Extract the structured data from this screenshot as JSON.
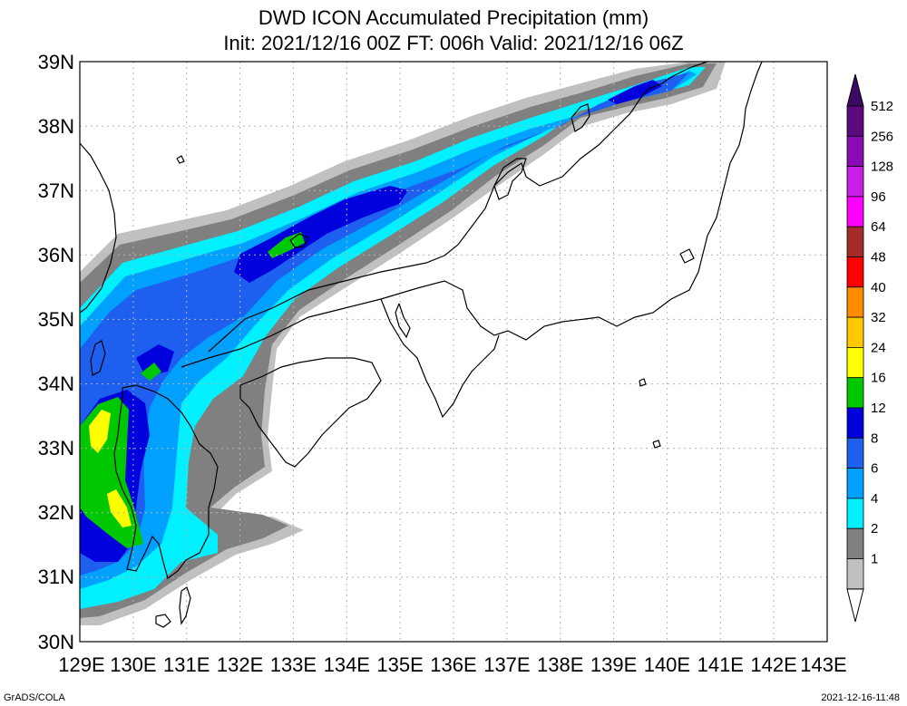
{
  "title": {
    "line1": "DWD ICON Accumulated Precipitation (mm)",
    "line2": "Init: 2021/12/16 00Z  FT: 006h  Valid: 2021/12/16 06Z"
  },
  "axes": {
    "lat_labels": [
      "39N",
      "38N",
      "37N",
      "36N",
      "35N",
      "34N",
      "33N",
      "32N",
      "31N",
      "30N"
    ],
    "lon_labels": [
      "129E",
      "130E",
      "131E",
      "132E",
      "133E",
      "134E",
      "135E",
      "136E",
      "137E",
      "138E",
      "139E",
      "140E",
      "141E",
      "142E",
      "143E"
    ]
  },
  "legend": {
    "levels": [
      {
        "label": "512",
        "color": "#5a0a7d"
      },
      {
        "label": "256",
        "color": "#8a0ab4"
      },
      {
        "label": "128",
        "color": "#c81ee6"
      },
      {
        "label": "96",
        "color": "#ff00ff"
      },
      {
        "label": "64",
        "color": "#a52a2a"
      },
      {
        "label": "48",
        "color": "#ff0000"
      },
      {
        "label": "40",
        "color": "#ff8c00"
      },
      {
        "label": "32",
        "color": "#ffc800"
      },
      {
        "label": "24",
        "color": "#ffff00"
      },
      {
        "label": "16",
        "color": "#00c800"
      },
      {
        "label": "12",
        "color": "#0000dc"
      },
      {
        "label": "8",
        "color": "#1e5ff0"
      },
      {
        "label": "6",
        "color": "#00a0ff"
      },
      {
        "label": "4",
        "color": "#00f0ff"
      },
      {
        "label": "2",
        "color": "#808080"
      },
      {
        "label": "1",
        "color": "#c0c0c0"
      }
    ],
    "top_arrow_color": "#3c0a64"
  },
  "footer": {
    "left": "GrADS/COLA",
    "right": "2021-12-16-11:48"
  }
}
